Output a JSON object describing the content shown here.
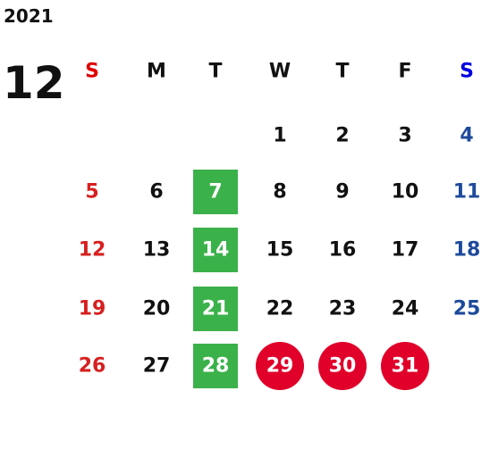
{
  "year": "2021",
  "month": "12",
  "weekdays": [
    "S",
    "M",
    "T",
    "W",
    "T",
    "F",
    "S"
  ],
  "weeks": [
    [
      null,
      null,
      null,
      1,
      2,
      3,
      4
    ],
    [
      5,
      6,
      7,
      8,
      9,
      10,
      11
    ],
    [
      12,
      13,
      14,
      15,
      16,
      17,
      18
    ],
    [
      19,
      20,
      21,
      22,
      23,
      24,
      25
    ],
    [
      26,
      27,
      28,
      29,
      30,
      31,
      null
    ]
  ]
}
